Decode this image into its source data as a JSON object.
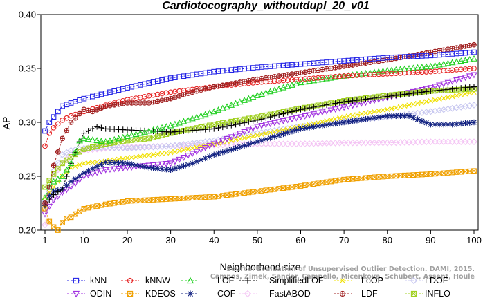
{
  "chart_data": {
    "type": "line",
    "title": "Cardiotocography_withoutdupl_20_v01",
    "xlabel": "Neighborhood size",
    "ylabel": "AP",
    "xlim": [
      1,
      100
    ],
    "ylim": [
      0.2,
      0.4
    ],
    "xticks": [
      1,
      10,
      20,
      30,
      40,
      50,
      60,
      70,
      80,
      90,
      100
    ],
    "yticks": [
      "0.20",
      "0.25",
      "0.30",
      "0.35",
      "0.40"
    ],
    "grid": false,
    "legend_position": "bottom",
    "watermark": [
      "Source: Evaluation of Unsupervised Outlier Detection. DAMI, 2015.",
      "Campos, Zimek, Sander, Campello, Micenkova, Schubert, Assent, Houle"
    ],
    "series": [
      {
        "name": "kNN",
        "color": "#2424e6",
        "marker": "square",
        "x": [
          1,
          2,
          3,
          5,
          7,
          10,
          15,
          20,
          30,
          40,
          50,
          60,
          70,
          80,
          90,
          100
        ],
        "values": [
          0.292,
          0.3,
          0.305,
          0.315,
          0.318,
          0.322,
          0.327,
          0.332,
          0.341,
          0.347,
          0.351,
          0.354,
          0.357,
          0.36,
          0.362,
          0.365
        ]
      },
      {
        "name": "kNNW",
        "color": "#e62424",
        "marker": "circle",
        "x": [
          1,
          2,
          3,
          5,
          7,
          10,
          15,
          20,
          30,
          40,
          50,
          60,
          70,
          80,
          90,
          100
        ],
        "values": [
          0.278,
          0.29,
          0.295,
          0.302,
          0.306,
          0.31,
          0.316,
          0.321,
          0.328,
          0.333,
          0.337,
          0.34,
          0.343,
          0.345,
          0.347,
          0.35
        ]
      },
      {
        "name": "LOF",
        "color": "#22d022",
        "marker": "triangle",
        "x": [
          1,
          2,
          3,
          5,
          7,
          9,
          10,
          15,
          20,
          30,
          40,
          50,
          60,
          70,
          80,
          90,
          100
        ],
        "values": [
          0.23,
          0.24,
          0.245,
          0.25,
          0.262,
          0.283,
          0.285,
          0.282,
          0.287,
          0.297,
          0.31,
          0.325,
          0.337,
          0.343,
          0.348,
          0.352,
          0.359
        ]
      },
      {
        "name": "SimplifiedLOF",
        "color": "#000000",
        "marker": "plus",
        "x": [
          1,
          2,
          3,
          5,
          7,
          9,
          10,
          13,
          15,
          20,
          30,
          40,
          50,
          60,
          70,
          80,
          90,
          100
        ],
        "values": [
          0.223,
          0.228,
          0.233,
          0.238,
          0.262,
          0.282,
          0.29,
          0.296,
          0.294,
          0.293,
          0.291,
          0.294,
          0.302,
          0.312,
          0.319,
          0.324,
          0.329,
          0.333
        ]
      },
      {
        "name": "LoOP",
        "color": "#f0e000",
        "marker": "x",
        "x": [
          1,
          2,
          3,
          5,
          7,
          10,
          15,
          20,
          30,
          40,
          50,
          60,
          70,
          80,
          90,
          100
        ],
        "values": [
          0.23,
          0.235,
          0.24,
          0.25,
          0.258,
          0.262,
          0.264,
          0.267,
          0.272,
          0.28,
          0.288,
          0.296,
          0.305,
          0.312,
          0.32,
          0.328
        ]
      },
      {
        "name": "LDOF",
        "color": "#c8c8f0",
        "marker": "diamond",
        "x": [
          1,
          2,
          3,
          5,
          7,
          10,
          15,
          20,
          30,
          40,
          50,
          60,
          70,
          80,
          90,
          100
        ],
        "values": [
          0.222,
          0.236,
          0.255,
          0.27,
          0.274,
          0.276,
          0.277,
          0.276,
          0.278,
          0.283,
          0.29,
          0.296,
          0.301,
          0.305,
          0.31,
          0.316
        ]
      },
      {
        "name": "ODIN",
        "color": "#a030e0",
        "marker": "triangle-down",
        "x": [
          1,
          2,
          3,
          5,
          7,
          10,
          15,
          20,
          30,
          40,
          50,
          60,
          70,
          80,
          90,
          100
        ],
        "values": [
          0.215,
          0.222,
          0.228,
          0.235,
          0.24,
          0.25,
          0.256,
          0.258,
          0.262,
          0.28,
          0.296,
          0.305,
          0.314,
          0.323,
          0.332,
          0.344
        ]
      },
      {
        "name": "KDEOS",
        "color": "#f0a000",
        "marker": "square-x",
        "x": [
          1,
          2,
          3,
          4,
          5,
          6,
          7,
          8,
          10,
          15,
          20,
          30,
          40,
          50,
          60,
          70,
          80,
          90,
          100
        ],
        "values": [
          0.22,
          0.208,
          0.203,
          0.2,
          0.207,
          0.211,
          0.212,
          0.215,
          0.22,
          0.224,
          0.227,
          0.229,
          0.231,
          0.236,
          0.241,
          0.247,
          0.25,
          0.252,
          0.255
        ]
      },
      {
        "name": "COF",
        "color": "#102080",
        "marker": "asterisk",
        "x": [
          1,
          2,
          3,
          5,
          7,
          10,
          15,
          20,
          25,
          30,
          35,
          40,
          50,
          60,
          70,
          75,
          80,
          85,
          90,
          95,
          100
        ],
        "values": [
          0.225,
          0.232,
          0.236,
          0.238,
          0.245,
          0.253,
          0.263,
          0.262,
          0.258,
          0.256,
          0.262,
          0.27,
          0.282,
          0.294,
          0.3,
          0.303,
          0.306,
          0.306,
          0.298,
          0.298,
          0.3
        ]
      },
      {
        "name": "FastABOD",
        "color": "#f4c4f4",
        "marker": "diamond",
        "x": [
          1,
          2,
          3,
          5,
          7,
          10,
          15,
          20,
          30,
          40,
          50,
          60,
          70,
          80,
          90,
          100
        ],
        "values": [
          0.205,
          0.23,
          0.25,
          0.262,
          0.27,
          0.274,
          0.276,
          0.277,
          0.278,
          0.279,
          0.28,
          0.28,
          0.281,
          0.281,
          0.282,
          0.282
        ]
      },
      {
        "name": "LDF",
        "color": "#a02020",
        "marker": "circle-plus",
        "x": [
          1,
          2,
          3,
          5,
          7,
          10,
          12,
          15,
          20,
          25,
          30,
          35,
          40,
          50,
          60,
          70,
          80,
          90,
          100
        ],
        "values": [
          0.225,
          0.24,
          0.26,
          0.285,
          0.3,
          0.312,
          0.31,
          0.315,
          0.318,
          0.318,
          0.322,
          0.328,
          0.333,
          0.34,
          0.346,
          0.352,
          0.358,
          0.365,
          0.372
        ]
      },
      {
        "name": "INFLO",
        "color": "#a0d020",
        "marker": "square-x",
        "x": [
          1,
          2,
          3,
          5,
          7,
          10,
          15,
          20,
          25,
          30,
          40,
          50,
          60,
          70,
          80,
          90,
          100
        ],
        "values": [
          0.24,
          0.246,
          0.252,
          0.262,
          0.268,
          0.275,
          0.28,
          0.283,
          0.285,
          0.29,
          0.298,
          0.305,
          0.313,
          0.32,
          0.325,
          0.329,
          0.331
        ]
      }
    ]
  }
}
